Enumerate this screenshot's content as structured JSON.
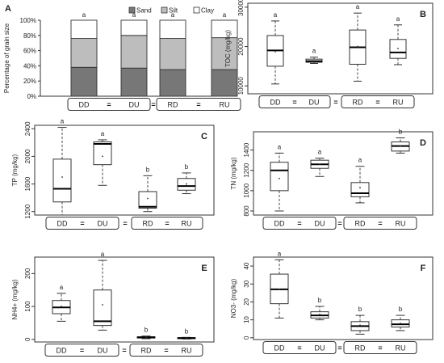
{
  "colors": {
    "sand": "#777777",
    "silt": "#bdbdbd",
    "clay": "#ffffff",
    "box_fill": "#ffffff",
    "stroke": "#333333"
  },
  "chart_data": [
    {
      "panel": "A",
      "type": "bar",
      "stacked": true,
      "ylabel": "Percentage of grain size",
      "yticks": [
        "0%",
        "20%",
        "40%",
        "60%",
        "80%",
        "100%"
      ],
      "ylim": [
        0,
        100
      ],
      "categories": [
        "DD",
        "DU",
        "RD",
        "RU"
      ],
      "series": [
        {
          "name": "Sand",
          "values": [
            38,
            37,
            35,
            35
          ]
        },
        {
          "name": "Silt",
          "values": [
            38,
            43,
            41,
            42
          ]
        },
        {
          "name": "Clay",
          "values": [
            24,
            20,
            24,
            23
          ]
        }
      ],
      "sig": [
        "a",
        "a",
        "a",
        "a"
      ],
      "legend_position": "top-right",
      "groups": {
        "left": [
          "DD",
          "DU"
        ],
        "right": [
          "RD",
          "RU"
        ],
        "eq_inner": "=",
        "eq_between": "="
      }
    },
    {
      "panel": "B",
      "type": "box",
      "ylabel": "TOC (mg/kg)",
      "ylim": [
        8000,
        31000
      ],
      "yticks": [
        10000,
        20000,
        30000
      ],
      "categories": [
        "DD",
        "DU",
        "RD",
        "RU"
      ],
      "boxes": [
        {
          "min": 10500,
          "q1": 15000,
          "median": 19000,
          "q3": 22800,
          "max": 26500,
          "mean": 18700
        },
        {
          "min": 15700,
          "q1": 16000,
          "median": 16300,
          "q3": 16800,
          "max": 17300,
          "mean": 16400
        },
        {
          "min": 11200,
          "q1": 15500,
          "median": 19800,
          "q3": 24200,
          "max": 28500,
          "mean": 20000
        },
        {
          "min": 15400,
          "q1": 17000,
          "median": 18500,
          "q3": 21800,
          "max": 25500,
          "mean": 19500
        }
      ],
      "sig": [
        "a",
        "a",
        "a",
        "a"
      ],
      "groups": {
        "left": [
          "DD",
          "DU"
        ],
        "right": [
          "RD",
          "RU"
        ],
        "eq_inner": "=",
        "eq_between": "="
      }
    },
    {
      "panel": "C",
      "type": "box",
      "ylabel": "TP (mg/kg)",
      "ylim": [
        1150,
        2450
      ],
      "yticks": [
        1200,
        1600,
        2000,
        2400
      ],
      "categories": [
        "DD",
        "DU",
        "RD",
        "RU"
      ],
      "boxes": [
        {
          "min": 1150,
          "q1": 1340,
          "median": 1530,
          "q3": 1960,
          "max": 2420,
          "mean": 1700
        },
        {
          "min": 1580,
          "q1": 1880,
          "median": 2180,
          "q3": 2210,
          "max": 2240,
          "mean": 2000
        },
        {
          "min": 1200,
          "q1": 1250,
          "median": 1270,
          "q3": 1490,
          "max": 1720,
          "mean": 1390
        },
        {
          "min": 1460,
          "q1": 1510,
          "median": 1570,
          "q3": 1680,
          "max": 1760,
          "mean": 1600
        }
      ],
      "sig": [
        "a",
        "a",
        "b",
        "b"
      ],
      "groups": {
        "left": [
          "DD",
          "DU"
        ],
        "right": [
          "RD",
          "RU"
        ],
        "eq_inner": "=",
        "eq_between": "="
      }
    },
    {
      "panel": "D",
      "type": "box",
      "ylabel": "TN (mg/kg)",
      "ylim": [
        760,
        1580
      ],
      "yticks": [
        800,
        1000,
        1200,
        1400
      ],
      "categories": [
        "DD",
        "DU",
        "RD",
        "RU"
      ],
      "boxes": [
        {
          "min": 800,
          "q1": 1000,
          "median": 1200,
          "q3": 1280,
          "max": 1370,
          "mean": 1120
        },
        {
          "min": 1140,
          "q1": 1220,
          "median": 1260,
          "q3": 1300,
          "max": 1320,
          "mean": 1260
        },
        {
          "min": 880,
          "q1": 940,
          "median": 975,
          "q3": 1080,
          "max": 1240,
          "mean": 1030
        },
        {
          "min": 1370,
          "q1": 1390,
          "median": 1440,
          "q3": 1480,
          "max": 1520,
          "mean": 1440
        }
      ],
      "sig": [
        "a",
        "a",
        "a",
        "b"
      ],
      "groups": {
        "left": [
          "DD",
          "DU"
        ],
        "right": [
          "RD",
          "RU"
        ],
        "eq_inner": "=",
        "eq_between": "="
      }
    },
    {
      "panel": "E",
      "type": "box",
      "ylabel": "NH4+ (mg/kg)",
      "ylim": [
        -8,
        250
      ],
      "yticks": [
        0,
        100,
        200
      ],
      "categories": [
        "DD",
        "DU",
        "RD",
        "RU"
      ],
      "boxes": [
        {
          "min": 55,
          "q1": 78,
          "median": 97,
          "q3": 118,
          "max": 140,
          "mean": 100
        },
        {
          "min": 28,
          "q1": 42,
          "median": 55,
          "q3": 150,
          "max": 240,
          "mean": 105
        },
        {
          "min": 2,
          "q1": 4,
          "median": 6,
          "q3": 8,
          "max": 10,
          "mean": 6
        },
        {
          "min": 1,
          "q1": 2,
          "median": 4,
          "q3": 5,
          "max": 6,
          "mean": 4
        }
      ],
      "sig": [
        "a",
        "a",
        "b",
        "b"
      ],
      "groups": {
        "left": [
          "DD",
          "DU"
        ],
        "right": [
          "RD",
          "RU"
        ],
        "eq_inner": "=",
        "eq_between": "="
      }
    },
    {
      "panel": "F",
      "type": "box",
      "ylabel": "NO3- (mg/kg)",
      "ylim": [
        -1,
        45
      ],
      "yticks": [
        0,
        10,
        20,
        30,
        40
      ],
      "categories": [
        "DD",
        "DU",
        "RD",
        "RU"
      ],
      "boxes": [
        {
          "min": 11,
          "q1": 19,
          "median": 27,
          "q3": 35.5,
          "max": 43.5,
          "mean": 27
        },
        {
          "min": 10,
          "q1": 11,
          "median": 12.5,
          "q3": 14.5,
          "max": 17.5,
          "mean": 13
        },
        {
          "min": 2,
          "q1": 4,
          "median": 6.5,
          "q3": 9,
          "max": 12.5,
          "mean": 7
        },
        {
          "min": 4,
          "q1": 6,
          "median": 7.5,
          "q3": 10,
          "max": 12.5,
          "mean": 8
        }
      ],
      "sig": [
        "a",
        "b",
        "b",
        "b"
      ],
      "groups": {
        "left": [
          "DD",
          "DU"
        ],
        "right": [
          "RD",
          "RU"
        ],
        "eq_inner": "=",
        "eq_between": "="
      }
    }
  ]
}
